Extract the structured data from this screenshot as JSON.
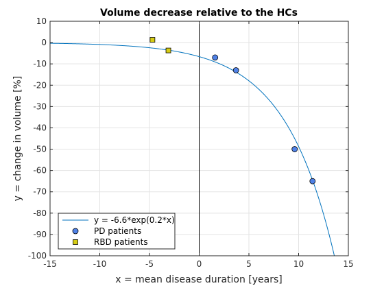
{
  "chart_data": {
    "type": "scatter",
    "title": "Volume decrease relative to the HCs",
    "xlabel": "x = mean disease duration [years]",
    "ylabel": "y = change in volume [%]",
    "xlim": [
      -15,
      15
    ],
    "ylim": [
      -100,
      10
    ],
    "xticks": [
      -15,
      -10,
      -5,
      0,
      5,
      10,
      15
    ],
    "yticks": [
      10,
      0,
      -10,
      -20,
      -30,
      -40,
      -50,
      -60,
      -70,
      -80,
      -90,
      -100
    ],
    "xtick_labels": [
      "-15",
      "-10",
      "-5",
      "0",
      "5",
      "10",
      "15"
    ],
    "ytick_labels": [
      "10",
      "0",
      "-10",
      "-20",
      "-30",
      "-40",
      "-50",
      "-60",
      "-70",
      "-80",
      "-90",
      "-100"
    ],
    "grid": true,
    "vertical_line_x": 0,
    "legend_position": "bottom-left",
    "series": [
      {
        "name": "y = -6.6*exp(0.2*x)",
        "kind": "line",
        "formula": {
          "a": -6.6,
          "b": 0.2
        },
        "color": "#0072bd"
      },
      {
        "name": "PD patients",
        "kind": "scatter",
        "marker": "circle",
        "color": "#4f81e6",
        "x": [
          1.6,
          3.7,
          9.6,
          11.4
        ],
        "y": [
          -7,
          -13,
          -50,
          -65
        ]
      },
      {
        "name": "RBD patients",
        "kind": "scatter",
        "marker": "square",
        "color": "#d6cc14",
        "x": [
          -4.7,
          -3.1
        ],
        "y": [
          1.3,
          -3.7
        ]
      }
    ]
  }
}
